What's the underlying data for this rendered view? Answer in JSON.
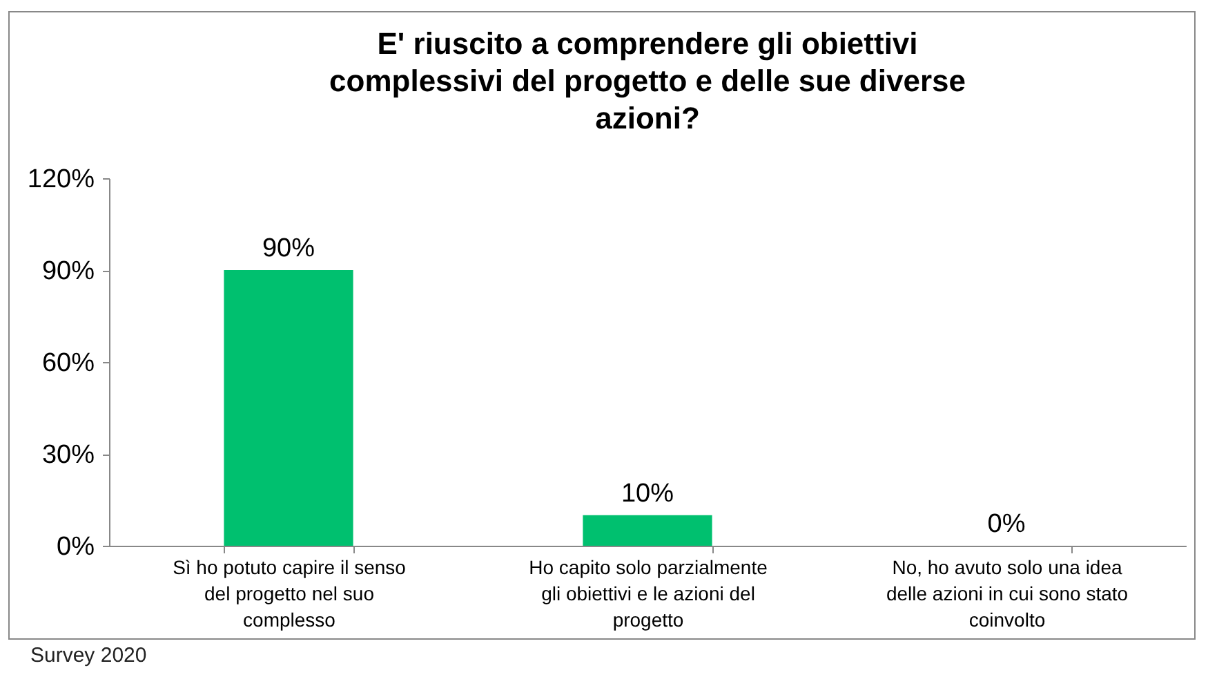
{
  "chart_data": {
    "type": "bar",
    "title": "E' riuscito a comprendere gli obiettivi complessivi del progetto e delle sue diverse azioni?",
    "categories": [
      "Sì ho potuto capire il senso del progetto nel suo complesso",
      "Ho capito solo parzialmente gli obiettivi e le azioni del progetto",
      "No, ho avuto solo una idea delle azioni in cui sono stato coinvolto"
    ],
    "values": [
      90,
      10,
      0
    ],
    "value_labels": [
      "90%",
      "10%",
      "0%"
    ],
    "color": "#00c06f",
    "ylim": [
      0,
      120
    ],
    "yticks": [
      {
        "value": 0,
        "label": "0%"
      },
      {
        "value": 30,
        "label": "30%"
      },
      {
        "value": 60,
        "label": "60%"
      },
      {
        "value": 90,
        "label": "90%"
      },
      {
        "value": 120,
        "label": "120%"
      }
    ],
    "grid": false,
    "annotations": [
      "Survey 2020"
    ]
  }
}
